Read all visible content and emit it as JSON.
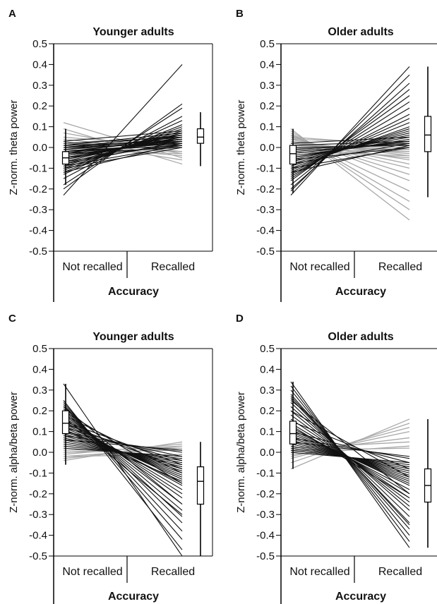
{
  "chart_data": [
    {
      "panel_letter": "A",
      "type": "slope",
      "title": "Younger adults",
      "xlabel": "Accuracy",
      "ylabel": "Z-norm. theta power",
      "categories": [
        "Not recalled",
        "Recalled"
      ],
      "yticks": [
        "0.5",
        "0.4",
        "0.3",
        "0.2",
        "0.1",
        "0.0",
        "-0.1",
        "-0.2",
        "-0.3",
        "-0.4",
        "-0.5"
      ],
      "ylim": [
        -0.5,
        0.5
      ],
      "box_left": {
        "min": -0.18,
        "q1": -0.08,
        "median": -0.05,
        "q3": -0.02,
        "max": 0.09
      },
      "box_right": {
        "min": -0.09,
        "q1": 0.02,
        "median": 0.05,
        "q3": 0.09,
        "max": 0.17
      },
      "lines_increase": [
        [
          -0.23,
          0.4
        ],
        [
          -0.2,
          0.21
        ],
        [
          -0.18,
          0.19
        ],
        [
          -0.15,
          0.15
        ],
        [
          -0.13,
          0.13
        ],
        [
          -0.12,
          0.11
        ],
        [
          -0.11,
          0.1
        ],
        [
          -0.1,
          0.09
        ],
        [
          -0.09,
          0.08
        ],
        [
          -0.08,
          0.07
        ],
        [
          -0.07,
          0.07
        ],
        [
          -0.06,
          0.06
        ],
        [
          -0.06,
          0.05
        ],
        [
          -0.05,
          0.05
        ],
        [
          -0.05,
          0.04
        ],
        [
          -0.04,
          0.04
        ],
        [
          -0.04,
          0.03
        ],
        [
          -0.03,
          0.06
        ],
        [
          -0.03,
          0.03
        ],
        [
          -0.02,
          0.04
        ],
        [
          -0.02,
          0.02
        ],
        [
          -0.01,
          0.05
        ],
        [
          -0.01,
          0.03
        ],
        [
          0.0,
          0.06
        ],
        [
          0.0,
          0.04
        ],
        [
          0.01,
          0.07
        ],
        [
          0.01,
          0.03
        ],
        [
          0.02,
          0.05
        ],
        [
          0.03,
          0.08
        ],
        [
          -0.12,
          0.02
        ],
        [
          -0.1,
          0.0
        ],
        [
          -0.09,
          0.01
        ],
        [
          -0.08,
          0.03
        ],
        [
          -0.07,
          0.02
        ],
        [
          -0.05,
          0.01
        ],
        [
          -0.03,
          0.0
        ],
        [
          -0.02,
          0.01
        ],
        [
          0.0,
          0.02
        ]
      ],
      "lines_decrease": [
        [
          0.12,
          -0.05
        ],
        [
          0.09,
          -0.08
        ],
        [
          0.07,
          -0.03
        ],
        [
          0.05,
          0.0
        ],
        [
          0.04,
          -0.02
        ],
        [
          0.03,
          -0.06
        ],
        [
          0.02,
          0.01
        ],
        [
          0.01,
          -0.04
        ],
        [
          0.0,
          -0.02
        ],
        [
          -0.01,
          -0.03
        ]
      ]
    },
    {
      "panel_letter": "B",
      "type": "slope",
      "title": "Older adults",
      "xlabel": "Accuracy",
      "ylabel": "Z-norm. theta power",
      "categories": [
        "Not recalled",
        "Recalled"
      ],
      "yticks": [
        "0.5",
        "0.4",
        "0.3",
        "0.2",
        "0.1",
        "0.0",
        "-0.1",
        "-0.2",
        "-0.3",
        "-0.4",
        "-0.5"
      ],
      "ylim": [
        -0.5,
        0.5
      ],
      "box_left": {
        "min": -0.22,
        "q1": -0.08,
        "median": -0.03,
        "q3": 0.01,
        "max": 0.09
      },
      "box_right": {
        "min": -0.24,
        "q1": -0.02,
        "median": 0.06,
        "q3": 0.15,
        "max": 0.39
      },
      "lines_increase": [
        [
          -0.23,
          0.39
        ],
        [
          -0.21,
          0.35
        ],
        [
          -0.2,
          0.31
        ],
        [
          -0.18,
          0.28
        ],
        [
          -0.16,
          0.25
        ],
        [
          -0.15,
          0.22
        ],
        [
          -0.14,
          0.19
        ],
        [
          -0.13,
          0.16
        ],
        [
          -0.12,
          0.14
        ],
        [
          -0.11,
          0.12
        ],
        [
          -0.1,
          0.1
        ],
        [
          -0.09,
          0.09
        ],
        [
          -0.08,
          0.08
        ],
        [
          -0.07,
          0.07
        ],
        [
          -0.06,
          0.06
        ],
        [
          -0.05,
          0.05
        ],
        [
          -0.05,
          0.04
        ],
        [
          -0.04,
          0.03
        ],
        [
          -0.03,
          0.03
        ],
        [
          -0.02,
          0.02
        ],
        [
          -0.01,
          0.02
        ],
        [
          0.0,
          0.01
        ],
        [
          0.01,
          0.03
        ],
        [
          0.02,
          0.05
        ],
        [
          -0.12,
          0.01
        ],
        [
          -0.1,
          0.0
        ],
        [
          -0.08,
          0.02
        ],
        [
          -0.06,
          0.0
        ]
      ],
      "lines_decrease": [
        [
          0.09,
          -0.35
        ],
        [
          0.08,
          -0.3
        ],
        [
          0.07,
          -0.26
        ],
        [
          0.06,
          -0.21
        ],
        [
          0.06,
          -0.16
        ],
        [
          0.05,
          -0.13
        ],
        [
          0.04,
          -0.1
        ],
        [
          0.04,
          -0.08
        ],
        [
          0.03,
          -0.06
        ],
        [
          0.03,
          -0.04
        ],
        [
          0.02,
          -0.03
        ],
        [
          0.02,
          -0.02
        ],
        [
          0.01,
          -0.01
        ],
        [
          0.01,
          0.0
        ],
        [
          0.0,
          -0.05
        ],
        [
          0.0,
          -0.01
        ],
        [
          -0.01,
          -0.02
        ],
        [
          -0.02,
          -0.04
        ],
        [
          0.05,
          0.01
        ],
        [
          0.04,
          0.02
        ]
      ]
    },
    {
      "panel_letter": "C",
      "type": "slope",
      "title": "Younger adults",
      "xlabel": "Accuracy",
      "ylabel": "Z-norm. alpha/beta power",
      "categories": [
        "Not recalled",
        "Recalled"
      ],
      "yticks": [
        "0.5",
        "0.4",
        "0.3",
        "0.2",
        "0.1",
        "0.0",
        "-0.1",
        "-0.2",
        "-0.3",
        "-0.4",
        "-0.5"
      ],
      "ylim": [
        -0.5,
        0.5
      ],
      "box_left": {
        "min": -0.06,
        "q1": 0.09,
        "median": 0.14,
        "q3": 0.2,
        "max": 0.33
      },
      "box_right": {
        "min": -0.5,
        "q1": -0.25,
        "median": -0.14,
        "q3": -0.07,
        "max": 0.05
      },
      "lines_increase": [
        [
          -0.04,
          0.05
        ],
        [
          -0.03,
          0.03
        ],
        [
          -0.02,
          0.02
        ],
        [
          -0.01,
          0.04
        ],
        [
          0.0,
          0.01
        ],
        [
          0.01,
          0.02
        ],
        [
          -0.02,
          -0.01
        ],
        [
          0.0,
          0.03
        ]
      ],
      "lines_decrease": [
        [
          0.33,
          -0.5
        ],
        [
          0.25,
          -0.47
        ],
        [
          0.24,
          -0.42
        ],
        [
          0.23,
          -0.38
        ],
        [
          0.22,
          -0.34
        ],
        [
          0.21,
          -0.31
        ],
        [
          0.2,
          -0.28
        ],
        [
          0.19,
          -0.25
        ],
        [
          0.18,
          -0.22
        ],
        [
          0.17,
          -0.2
        ],
        [
          0.16,
          -0.18
        ],
        [
          0.15,
          -0.16
        ],
        [
          0.14,
          -0.15
        ],
        [
          0.13,
          -0.13
        ],
        [
          0.12,
          -0.12
        ],
        [
          0.11,
          -0.11
        ],
        [
          0.1,
          -0.1
        ],
        [
          0.09,
          -0.09
        ],
        [
          0.08,
          -0.08
        ],
        [
          0.07,
          -0.07
        ],
        [
          0.06,
          -0.06
        ],
        [
          0.05,
          -0.05
        ],
        [
          0.04,
          -0.04
        ],
        [
          0.03,
          -0.03
        ],
        [
          0.02,
          -0.02
        ],
        [
          0.2,
          -0.15
        ],
        [
          0.18,
          -0.1
        ],
        [
          0.15,
          -0.06
        ],
        [
          0.12,
          -0.04
        ],
        [
          0.1,
          -0.02
        ],
        [
          0.08,
          0.0
        ],
        [
          0.06,
          0.01
        ],
        [
          0.22,
          -0.25
        ],
        [
          0.17,
          -0.3
        ],
        [
          0.14,
          -0.08
        ],
        [
          0.11,
          -0.14
        ]
      ]
    },
    {
      "panel_letter": "D",
      "type": "slope",
      "title": "Older adults",
      "xlabel": "Accuracy",
      "ylabel": "Z-norm. alpha/beta power",
      "categories": [
        "Not recalled",
        "Recalled"
      ],
      "yticks": [
        "0.5",
        "0.4",
        "0.3",
        "0.2",
        "0.1",
        "0.0",
        "-0.1",
        "-0.2",
        "-0.3",
        "-0.4",
        "-0.5"
      ],
      "ylim": [
        -0.5,
        0.5
      ],
      "box_left": {
        "min": -0.08,
        "q1": 0.04,
        "median": 0.09,
        "q3": 0.15,
        "max": 0.34
      },
      "box_right": {
        "min": -0.46,
        "q1": -0.24,
        "median": -0.16,
        "q3": -0.08,
        "max": 0.16
      },
      "lines_increase": [
        [
          -0.08,
          0.16
        ],
        [
          -0.05,
          0.14
        ],
        [
          -0.03,
          0.12
        ],
        [
          -0.02,
          0.1
        ],
        [
          0.0,
          0.07
        ],
        [
          0.02,
          0.05
        ],
        [
          0.01,
          0.02
        ],
        [
          -0.01,
          0.03
        ]
      ],
      "lines_decrease": [
        [
          0.34,
          -0.46
        ],
        [
          0.32,
          -0.43
        ],
        [
          0.3,
          -0.4
        ],
        [
          0.28,
          -0.37
        ],
        [
          0.26,
          -0.34
        ],
        [
          0.24,
          -0.31
        ],
        [
          0.22,
          -0.28
        ],
        [
          0.2,
          -0.26
        ],
        [
          0.18,
          -0.24
        ],
        [
          0.16,
          -0.22
        ],
        [
          0.14,
          -0.2
        ],
        [
          0.12,
          -0.18
        ],
        [
          0.11,
          -0.16
        ],
        [
          0.1,
          -0.15
        ],
        [
          0.09,
          -0.14
        ],
        [
          0.08,
          -0.13
        ],
        [
          0.07,
          -0.12
        ],
        [
          0.06,
          -0.11
        ],
        [
          0.05,
          -0.1
        ],
        [
          0.04,
          -0.09
        ],
        [
          0.03,
          -0.08
        ],
        [
          0.02,
          -0.07
        ],
        [
          0.01,
          -0.06
        ],
        [
          0.0,
          -0.05
        ],
        [
          0.25,
          -0.2
        ],
        [
          0.2,
          -0.12
        ],
        [
          0.15,
          -0.08
        ],
        [
          0.1,
          -0.05
        ],
        [
          0.07,
          -0.03
        ],
        [
          0.05,
          -0.02
        ],
        [
          0.27,
          -0.35
        ],
        [
          0.13,
          -0.22
        ]
      ]
    }
  ]
}
